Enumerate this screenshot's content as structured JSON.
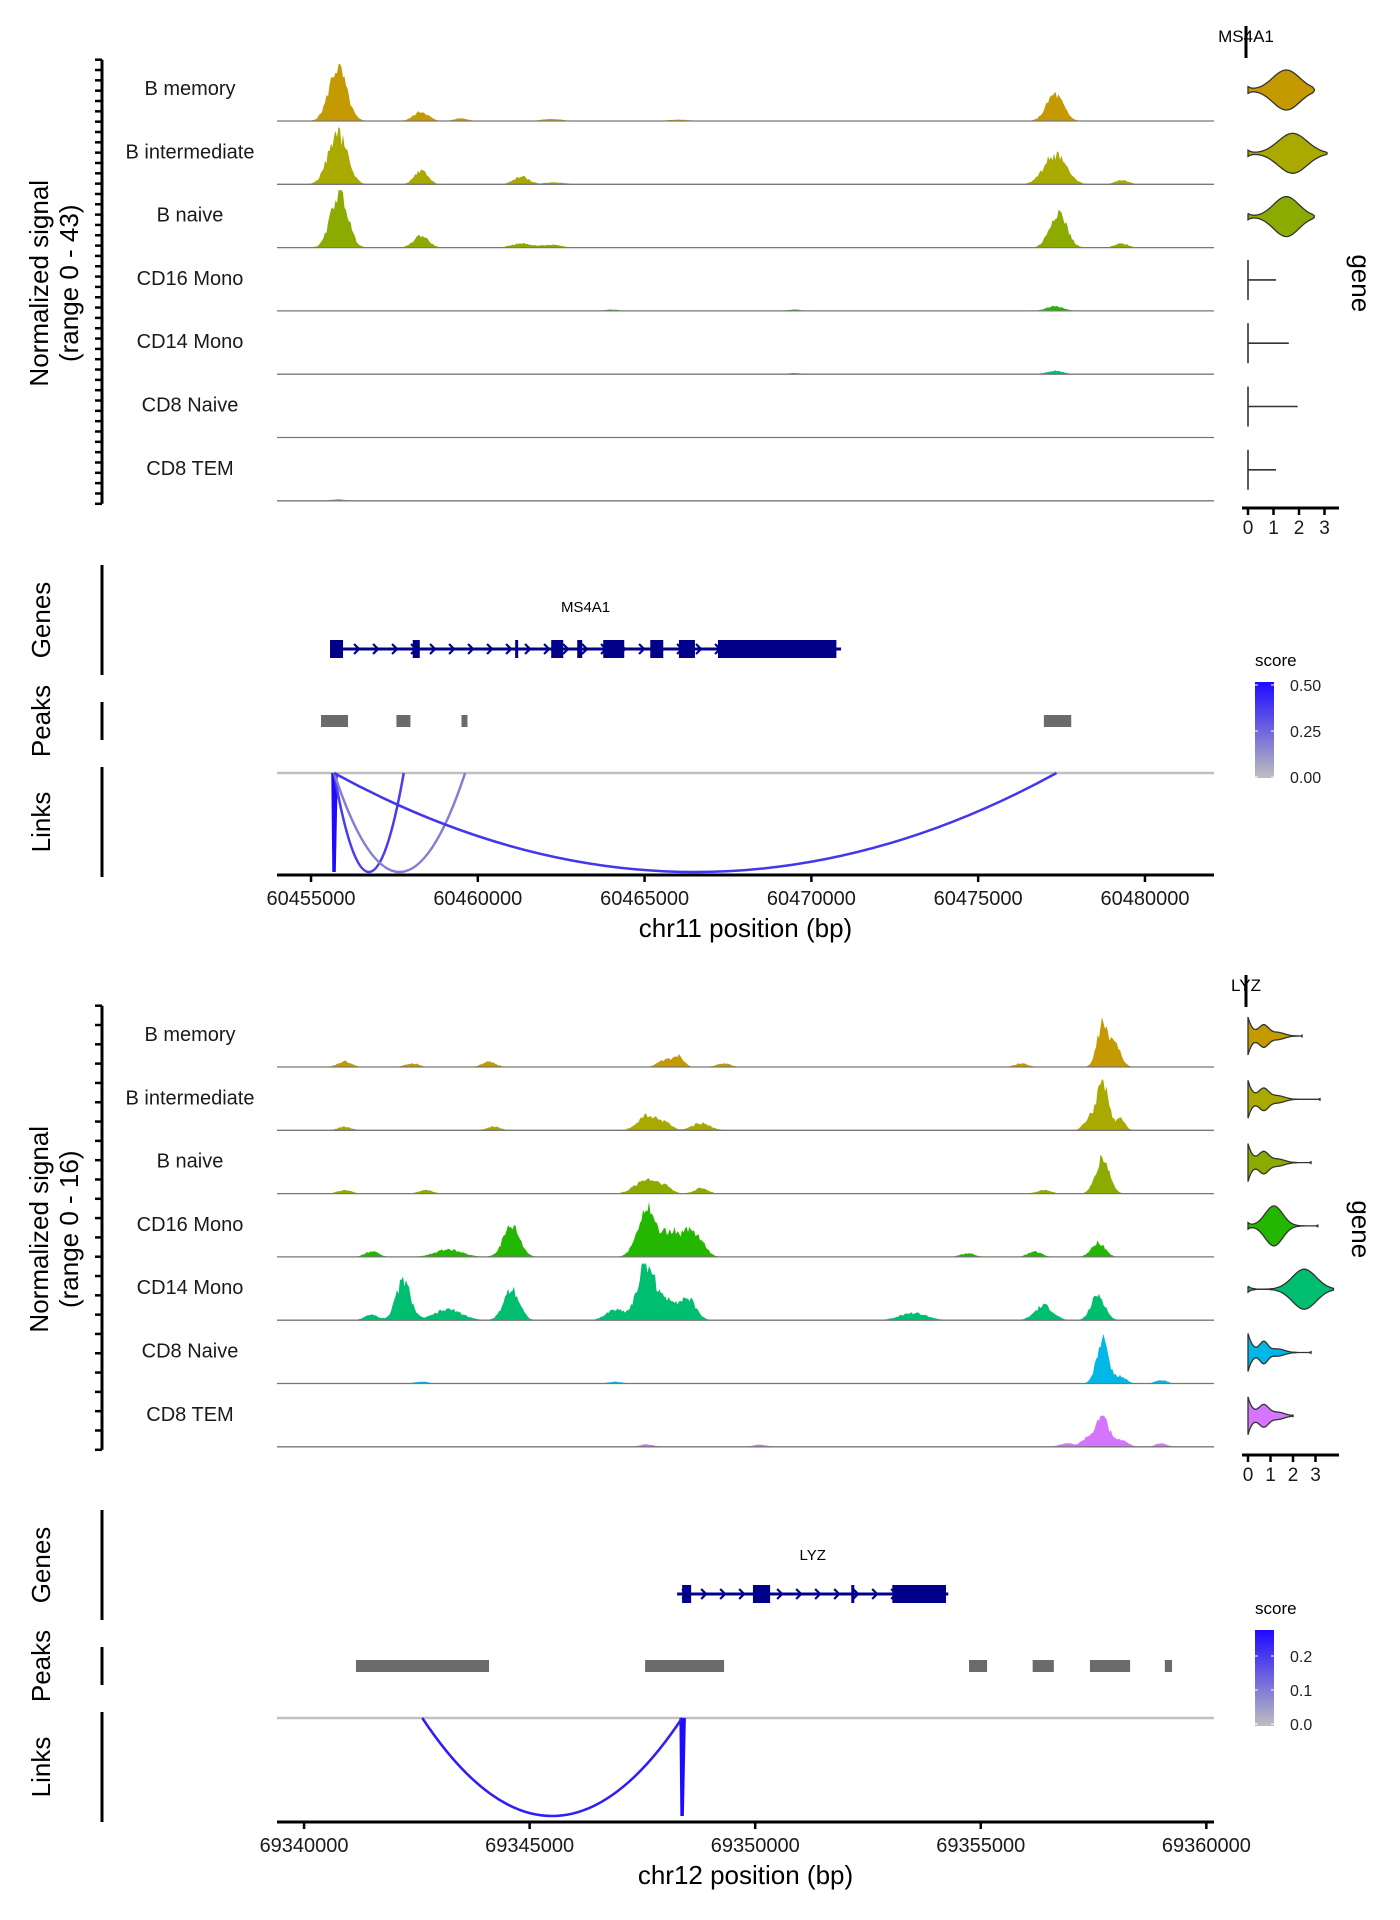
{
  "chart_data": [
    {
      "type": "area",
      "title": "MS4A1",
      "gene": "MS4A1",
      "chromosome": "chr11",
      "xlabel": "chr11 position (bp)",
      "xlim": [
        60453980,
        60482070
      ],
      "xticks": [
        60455000,
        60460000,
        60465000,
        60470000,
        60475000,
        60480000
      ],
      "xtick_labels": [
        "60455000",
        "60460000",
        "60465000",
        "60470000",
        "60475000",
        "60480000"
      ],
      "coverage": {
        "ylabel_line1": "Normalized signal",
        "ylabel_line2": "(range 0 - 43)",
        "ylim": [
          0,
          43
        ],
        "tracks": [
          {
            "name": "B memory",
            "color": "#C49A00",
            "peaks": [
              [
                60455800,
                40,
                260
              ],
              [
                60458300,
                7,
                220
              ],
              [
                60459500,
                2,
                200
              ],
              [
                60462200,
                1.5,
                300
              ],
              [
                60466000,
                1,
                300
              ],
              [
                60477300,
                20,
                250
              ]
            ]
          },
          {
            "name": "B intermediate",
            "color": "#A9A900",
            "peaks": [
              [
                60455800,
                38,
                280
              ],
              [
                60458300,
                10,
                200
              ],
              [
                60461300,
                6,
                220
              ],
              [
                60462300,
                1.5,
                300
              ],
              [
                60477300,
                22,
                330
              ],
              [
                60479300,
                3,
                200
              ]
            ]
          },
          {
            "name": "B naive",
            "color": "#8CAB00",
            "peaks": [
              [
                60455850,
                42,
                250
              ],
              [
                60458300,
                9,
                220
              ],
              [
                60461300,
                3,
                300
              ],
              [
                60462200,
                2,
                300
              ],
              [
                60477400,
                27,
                250
              ],
              [
                60479300,
                3,
                200
              ]
            ]
          },
          {
            "name": "CD16 Mono",
            "color": "#24B700",
            "peaks": [
              [
                60464000,
                1,
                200
              ],
              [
                60469500,
                1,
                200
              ],
              [
                60477300,
                3.5,
                250
              ]
            ]
          },
          {
            "name": "CD14 Mono",
            "color": "#00BE70",
            "peaks": [
              [
                60469500,
                0.8,
                200
              ],
              [
                60477300,
                2.5,
                250
              ]
            ]
          },
          {
            "name": "CD8 Naive",
            "color": "#00C1AB",
            "peaks": []
          },
          {
            "name": "CD8 TEM",
            "color": "#D575FE",
            "peaks": [
              [
                60455800,
                1.2,
                200
              ]
            ]
          }
        ]
      },
      "violin": {
        "title": "MS4A1",
        "ylabel": "gene",
        "xlim": [
          0,
          3.3
        ],
        "xticks": [
          0,
          1,
          2,
          3
        ],
        "xtick_labels": [
          "0",
          "1",
          "2",
          "3"
        ],
        "groups": [
          {
            "name": "B memory",
            "max": 2.6,
            "mode": 1.5,
            "spread": 0.75
          },
          {
            "name": "B intermediate",
            "max": 3.1,
            "mode": 1.75,
            "spread": 0.8
          },
          {
            "name": "B naive",
            "max": 2.6,
            "mode": 1.5,
            "spread": 0.7
          },
          {
            "name": "CD16 Mono",
            "max": 1.1,
            "mode": 0,
            "spread": 0
          },
          {
            "name": "CD14 Mono",
            "max": 1.6,
            "mode": 0,
            "spread": 0
          },
          {
            "name": "CD8 Naive",
            "max": 1.95,
            "mode": 0,
            "spread": 0
          },
          {
            "name": "CD8 TEM",
            "max": 1.1,
            "mode": 0,
            "spread": 0
          }
        ]
      },
      "genes_track": {
        "label": "Genes",
        "name": "MS4A1",
        "strand": "+",
        "start": 60455570,
        "end": 60470890,
        "exons": [
          [
            60455570,
            60455960
          ],
          [
            60458050,
            60458260
          ],
          [
            60461120,
            60461210
          ],
          [
            60462200,
            60462560
          ],
          [
            60462980,
            60463130
          ],
          [
            60463760,
            60464390
          ],
          [
            60465170,
            60465560
          ],
          [
            60466030,
            60466510
          ],
          [
            60467200,
            60470750
          ]
        ]
      },
      "peaks_track": {
        "label": "Peaks",
        "peaks": [
          [
            60455300,
            60456110
          ],
          [
            60457560,
            60457980
          ],
          [
            60459510,
            60459690
          ],
          [
            60476970,
            60477790
          ]
        ]
      },
      "links_track": {
        "label": "Links",
        "color_legend_title": "score",
        "legend_ticks": [
          "0.50",
          "0.25",
          "0.00"
        ],
        "score_range": [
          0,
          0.5
        ],
        "links": [
          {
            "start": 60455690,
            "end": 60455700,
            "score": 0.52
          },
          {
            "start": 60455690,
            "end": 60457780,
            "score": 0.36
          },
          {
            "start": 60455690,
            "end": 60459620,
            "score": 0.18
          },
          {
            "start": 60455690,
            "end": 60477350,
            "score": 0.38
          }
        ]
      }
    },
    {
      "type": "area",
      "title": "LYZ",
      "gene": "LYZ",
      "chromosome": "chr12",
      "xlabel": "chr12 position (bp)",
      "xlim": [
        69339400,
        69360170
      ],
      "xticks": [
        69340000,
        69345000,
        69350000,
        69355000,
        69360000
      ],
      "xtick_labels": [
        "69340000",
        "69345000",
        "69350000",
        "69355000",
        "69360000"
      ],
      "coverage": {
        "ylabel_line1": "Normalized signal",
        "ylabel_line2": "(range 0 - 16)",
        "ylim": [
          0,
          16
        ],
        "tracks": [
          {
            "name": "B memory",
            "color": "#C49A00",
            "peaks": [
              [
                69340900,
                1.5,
                150
              ],
              [
                69342400,
                1,
                150
              ],
              [
                69344100,
                1.5,
                150
              ],
              [
                69348000,
                2,
                150
              ],
              [
                69348300,
                3,
                120
              ],
              [
                69349300,
                1,
                150
              ],
              [
                69355900,
                1,
                150
              ],
              [
                69357700,
                12,
                120
              ],
              [
                69358000,
                6,
                120
              ]
            ]
          },
          {
            "name": "B intermediate",
            "color": "#A9A900",
            "peaks": [
              [
                69340900,
                1,
                150
              ],
              [
                69344200,
                1,
                150
              ],
              [
                69347600,
                4,
                200
              ],
              [
                69348000,
                2,
                150
              ],
              [
                69348800,
                2,
                200
              ],
              [
                69357400,
                3,
                120
              ],
              [
                69357700,
                13,
                130
              ],
              [
                69358100,
                3,
                100
              ]
            ]
          },
          {
            "name": "B naive",
            "color": "#8CAB00",
            "peaks": [
              [
                69340900,
                1,
                150
              ],
              [
                69342700,
                1,
                150
              ],
              [
                69347600,
                4,
                250
              ],
              [
                69348000,
                1.5,
                150
              ],
              [
                69348800,
                1.5,
                150
              ],
              [
                69356400,
                1,
                150
              ],
              [
                69357700,
                10,
                150
              ]
            ]
          },
          {
            "name": "CD16 Mono",
            "color": "#24B700",
            "peaks": [
              [
                69341500,
                1.5,
                150
              ],
              [
                69343200,
                2,
                300
              ],
              [
                69344600,
                9,
                180
              ],
              [
                69347600,
                14,
                200
              ],
              [
                69348100,
                6,
                150
              ],
              [
                69348500,
                7,
                200
              ],
              [
                69348800,
                2.5,
                150
              ],
              [
                69354700,
                1,
                150
              ],
              [
                69356200,
                1.5,
                150
              ],
              [
                69357600,
                4,
                150
              ]
            ]
          },
          {
            "name": "CD14 Mono",
            "color": "#00BE70",
            "peaks": [
              [
                69341500,
                1.5,
                150
              ],
              [
                69342200,
                11,
                160
              ],
              [
                69343200,
                3,
                300
              ],
              [
                69344600,
                9,
                170
              ],
              [
                69346900,
                3,
                200
              ],
              [
                69347600,
                16,
                200
              ],
              [
                69348100,
                5,
                150
              ],
              [
                69348500,
                6,
                180
              ],
              [
                69353500,
                2,
                300
              ],
              [
                69356400,
                4,
                200
              ],
              [
                69357600,
                7,
                150
              ]
            ]
          },
          {
            "name": "CD8 Naive",
            "color": "#00B8E7",
            "peaks": [
              [
                69342600,
                0.5,
                150
              ],
              [
                69346900,
                0.5,
                150
              ],
              [
                69357700,
                12,
                130
              ],
              [
                69358100,
                2,
                120
              ],
              [
                69359000,
                1,
                120
              ]
            ]
          },
          {
            "name": "CD8 TEM",
            "color": "#D575FE",
            "peaks": [
              [
                69347600,
                0.7,
                150
              ],
              [
                69350100,
                0.6,
                150
              ],
              [
                69356900,
                1,
                150
              ],
              [
                69357400,
                2.5,
                150
              ],
              [
                69357700,
                9,
                130
              ],
              [
                69358100,
                2,
                150
              ],
              [
                69359000,
                1,
                120
              ]
            ]
          }
        ]
      },
      "violin": {
        "title": "LYZ",
        "ylabel": "gene",
        "xlim": [
          0,
          3.9
        ],
        "xticks": [
          0,
          1,
          2,
          3
        ],
        "xtick_labels": [
          "0",
          "1",
          "2",
          "3"
        ],
        "groups": [
          {
            "name": "B memory",
            "max": 2.4,
            "mode": 0,
            "spread": 0.3
          },
          {
            "name": "B intermediate",
            "max": 3.2,
            "mode": 0,
            "spread": 0.3
          },
          {
            "name": "B naive",
            "max": 2.8,
            "mode": 0,
            "spread": 0.3
          },
          {
            "name": "CD16 Mono",
            "max": 3.1,
            "mode": 1.15,
            "spread": 0.55
          },
          {
            "name": "CD14 Mono",
            "max": 3.8,
            "mode": 2.5,
            "spread": 0.75
          },
          {
            "name": "CD8 Naive",
            "max": 2.8,
            "mode": 0,
            "spread": 0.25
          },
          {
            "name": "CD8 TEM",
            "max": 2.0,
            "mode": 0,
            "spread": 0.3
          }
        ]
      },
      "genes_track": {
        "label": "Genes",
        "name": "LYZ",
        "strand": "+",
        "start": 69348270,
        "end": 69354280,
        "exons": [
          [
            69348380,
            69348580
          ],
          [
            69349950,
            69350330
          ],
          [
            69352130,
            69352170
          ],
          [
            69353040,
            69354230
          ]
        ]
      },
      "peaks_track": {
        "label": "Peaks",
        "peaks": [
          [
            69341150,
            69344100
          ],
          [
            69347560,
            69349310
          ],
          [
            69354740,
            69355140
          ],
          [
            69356150,
            69356620
          ],
          [
            69357420,
            69358310
          ],
          [
            69359080,
            69359240
          ]
        ]
      },
      "links_track": {
        "label": "Links",
        "color_legend_title": "score",
        "legend_ticks": [
          "0.2",
          "0.1",
          "0.0"
        ],
        "score_range": [
          0,
          0.28
        ],
        "links": [
          {
            "start": 69348380,
            "end": 69348400,
            "score": 0.28
          },
          {
            "start": 69342620,
            "end": 69348380,
            "score": 0.25
          }
        ]
      }
    }
  ]
}
